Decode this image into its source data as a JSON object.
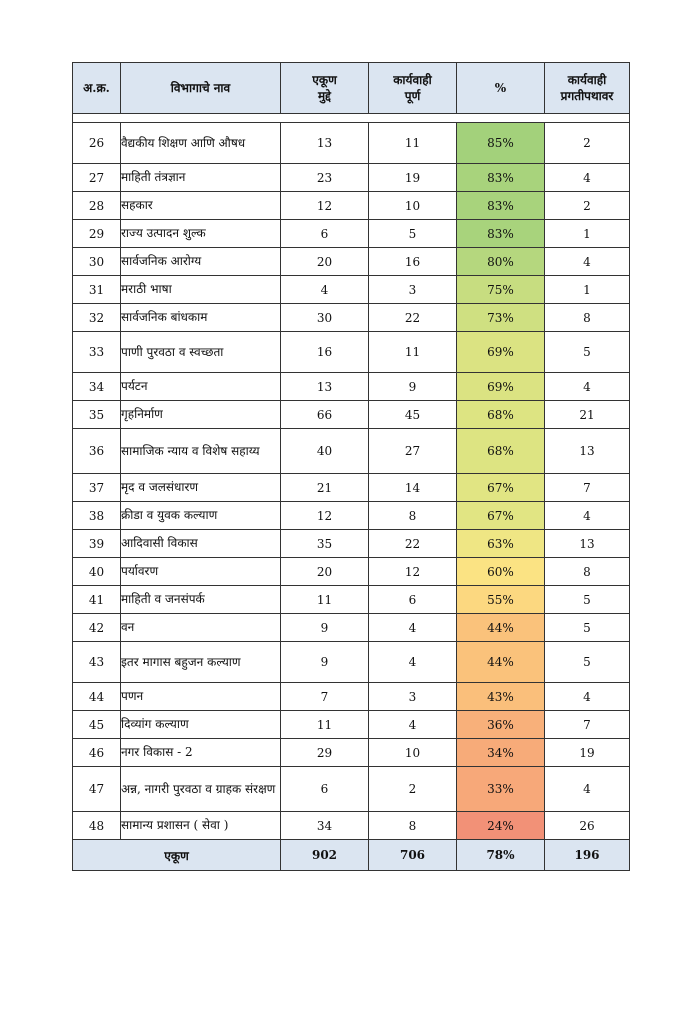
{
  "headers": {
    "sr": "अ.क्र.",
    "dept": "विभागाचे नाव",
    "total": [
      "एकूण",
      "मुद्दे"
    ],
    "done": [
      "कार्यवाही",
      "पूर्ण"
    ],
    "pct": "%",
    "progress": [
      "कार्यवाही",
      "प्रगतीपथावर"
    ]
  },
  "rows": [
    {
      "sr": "26",
      "dept": "वैद्यकीय शिक्षण आणि औषध",
      "total": "13",
      "done": "11",
      "pct": "85%",
      "progress": "2",
      "color": "#a3d17b",
      "h": "h2"
    },
    {
      "sr": "27",
      "dept": "माहिती तंत्रज्ञान",
      "total": "23",
      "done": "19",
      "pct": "83%",
      "progress": "4",
      "color": "#a8d37c",
      "h": "h1"
    },
    {
      "sr": "28",
      "dept": "सहकार",
      "total": "12",
      "done": "10",
      "pct": "83%",
      "progress": "2",
      "color": "#a8d37c",
      "h": "h1"
    },
    {
      "sr": "29",
      "dept": "राज्य उत्पादन शुल्क",
      "total": "6",
      "done": "5",
      "pct": "83%",
      "progress": "1",
      "color": "#a8d37c",
      "h": "h1"
    },
    {
      "sr": "30",
      "dept": "सार्वजनिक आरोग्य",
      "total": "20",
      "done": "16",
      "pct": "80%",
      "progress": "4",
      "color": "#b5d77e",
      "h": "h1"
    },
    {
      "sr": "31",
      "dept": "मराठी भाषा",
      "total": "4",
      "done": "3",
      "pct": "75%",
      "progress": "1",
      "color": "#c7dd80",
      "h": "h1"
    },
    {
      "sr": "32",
      "dept": "सार्वजनिक बांधकाम",
      "total": "30",
      "done": "22",
      "pct": "73%",
      "progress": "8",
      "color": "#cfe081",
      "h": "h1"
    },
    {
      "sr": "33",
      "dept": "पाणी पुरवठा व स्वच्छता",
      "total": "16",
      "done": "11",
      "pct": "69%",
      "progress": "5",
      "color": "#dbe382",
      "h": "h2"
    },
    {
      "sr": "34",
      "dept": "पर्यटन",
      "total": "13",
      "done": "9",
      "pct": "69%",
      "progress": "4",
      "color": "#dbe382",
      "h": "h1"
    },
    {
      "sr": "35",
      "dept": "गृहनिर्माण",
      "total": "66",
      "done": "45",
      "pct": "68%",
      "progress": "21",
      "color": "#dde482",
      "h": "h1"
    },
    {
      "sr": "36",
      "dept": "सामाजिक न्याय व विशेष सहाय्य",
      "total": "40",
      "done": "27",
      "pct": "68%",
      "progress": "13",
      "color": "#dde482",
      "h": "h3"
    },
    {
      "sr": "37",
      "dept": "मृद व जलसंधारण",
      "total": "21",
      "done": "14",
      "pct": "67%",
      "progress": "7",
      "color": "#e1e583",
      "h": "h1"
    },
    {
      "sr": "38",
      "dept": "क्रीडा व युवक कल्याण",
      "total": "12",
      "done": "8",
      "pct": "67%",
      "progress": "4",
      "color": "#e1e583",
      "h": "h1"
    },
    {
      "sr": "39",
      "dept": "आदिवासी विकास",
      "total": "35",
      "done": "22",
      "pct": "63%",
      "progress": "13",
      "color": "#efe684",
      "h": "h1"
    },
    {
      "sr": "40",
      "dept": "पर्यावरण",
      "total": "20",
      "done": "12",
      "pct": "60%",
      "progress": "8",
      "color": "#fbe383",
      "h": "h1"
    },
    {
      "sr": "41",
      "dept": "माहिती व जनसंपर्क",
      "total": "11",
      "done": "6",
      "pct": "55%",
      "progress": "5",
      "color": "#fcd880",
      "h": "h1"
    },
    {
      "sr": "42",
      "dept": "वन",
      "total": "9",
      "done": "4",
      "pct": "44%",
      "progress": "5",
      "color": "#fac27b",
      "h": "h1"
    },
    {
      "sr": "43",
      "dept": "इतर मागास बहुजन कल्याण",
      "total": "9",
      "done": "4",
      "pct": "44%",
      "progress": "5",
      "color": "#fac27b",
      "h": "h2"
    },
    {
      "sr": "44",
      "dept": "पणन",
      "total": "7",
      "done": "3",
      "pct": "43%",
      "progress": "4",
      "color": "#fabf7b",
      "h": "h1"
    },
    {
      "sr": "45",
      "dept": "दिव्यांग कल्याण",
      "total": "11",
      "done": "4",
      "pct": "36%",
      "progress": "7",
      "color": "#f8b07a",
      "h": "h1"
    },
    {
      "sr": "46",
      "dept": "नगर विकास - 2",
      "total": "29",
      "done": "10",
      "pct": "34%",
      "progress": "19",
      "color": "#f7ab79",
      "h": "h1"
    },
    {
      "sr": "47",
      "dept": "अन्न, नागरी पुरवठा व ग्राहक संरक्षण",
      "total": "6",
      "done": "2",
      "pct": "33%",
      "progress": "4",
      "color": "#f7a879",
      "h": "h3"
    },
    {
      "sr": "48",
      "dept": "सामान्य प्रशासन ( सेवा )",
      "total": "34",
      "done": "8",
      "pct": "24%",
      "progress": "26",
      "color": "#f29177",
      "h": "h1"
    }
  ],
  "footer": {
    "label": "एकूण",
    "total": "902",
    "done": "706",
    "pct": "78%",
    "progress": "196"
  }
}
